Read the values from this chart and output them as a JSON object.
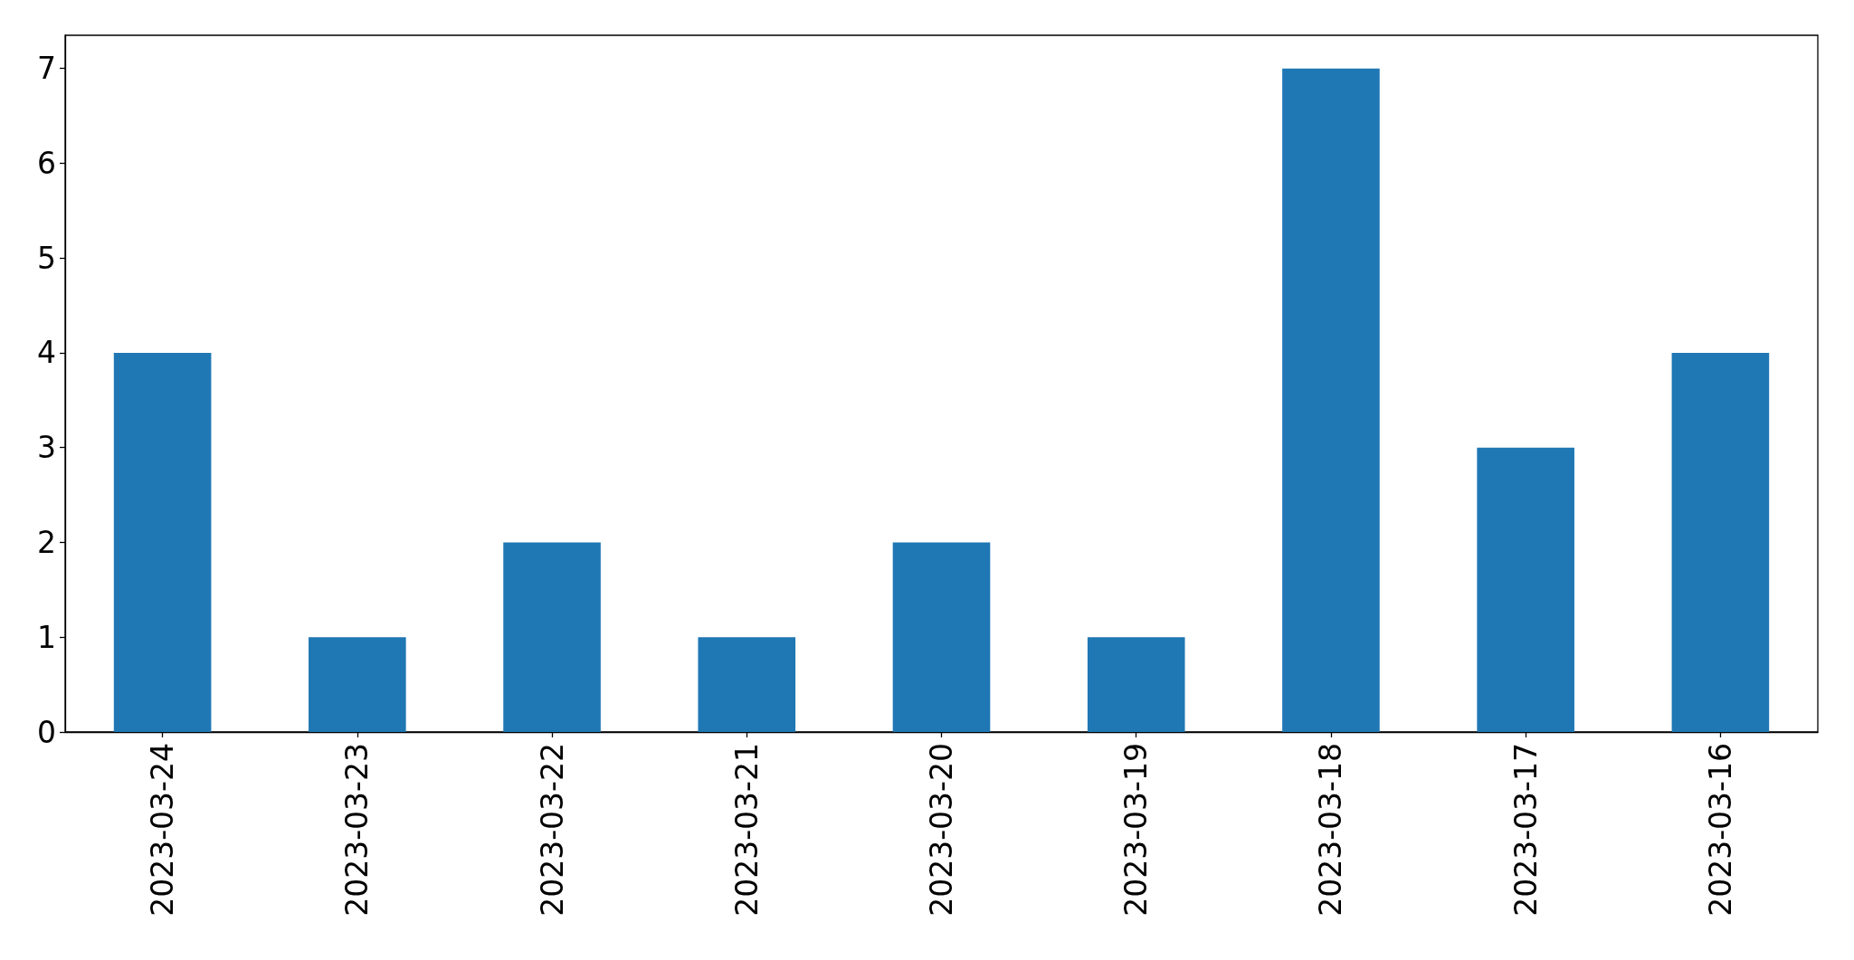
{
  "chart_data": {
    "type": "bar",
    "categories": [
      "2023-03-24",
      "2023-03-23",
      "2023-03-22",
      "2023-03-21",
      "2023-03-20",
      "2023-03-19",
      "2023-03-18",
      "2023-03-17",
      "2023-03-16"
    ],
    "values": [
      4,
      1,
      2,
      1,
      2,
      1,
      7,
      3,
      4
    ],
    "color": "#1f77b4",
    "ylim": [
      0,
      7.35
    ],
    "yticks": [
      0,
      1,
      2,
      3,
      4,
      5,
      6,
      7
    ],
    "grid": false
  }
}
